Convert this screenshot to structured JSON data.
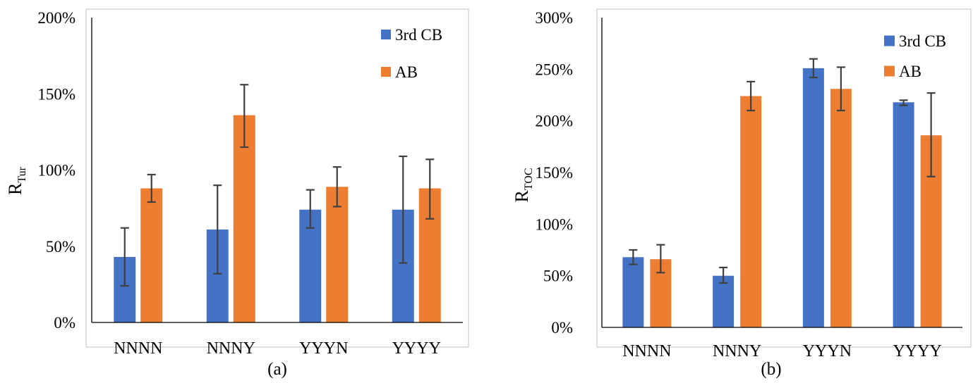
{
  "colors": {
    "cb": "#4472C4",
    "ab": "#ED7D31",
    "error_bar": "#404040",
    "axis": "#000000",
    "frame": "#BFBFBF"
  },
  "chart_data": [
    {
      "type": "bar",
      "panel_label": "(a)",
      "ylabel_main": "R",
      "ylabel_sub": "Tur",
      "categories": [
        "NNNN",
        "NNNY",
        "YYYN",
        "YYYY"
      ],
      "ylim": [
        0,
        200
      ],
      "yticks": [
        0,
        50,
        100,
        150,
        200
      ],
      "tick_suffix": "%",
      "legend_position": "top-right",
      "series": [
        {
          "name": "3rd CB",
          "color": "#4472C4",
          "values": [
            43,
            61,
            74,
            74
          ],
          "err_low": [
            24,
            32,
            62,
            39
          ],
          "err_high": [
            62,
            90,
            87,
            109
          ]
        },
        {
          "name": "AB",
          "color": "#ED7D31",
          "values": [
            88,
            136,
            89,
            88
          ],
          "err_low": [
            79,
            115,
            76,
            68
          ],
          "err_high": [
            97,
            156,
            102,
            107
          ]
        }
      ]
    },
    {
      "type": "bar",
      "panel_label": "(b)",
      "ylabel_main": "R",
      "ylabel_sub": "TOC",
      "categories": [
        "NNNN",
        "NNNY",
        "YYYN",
        "YYYY"
      ],
      "ylim": [
        0,
        300
      ],
      "yticks": [
        0,
        50,
        100,
        150,
        200,
        250,
        300
      ],
      "tick_suffix": "%",
      "legend_position": "top-right",
      "series": [
        {
          "name": "3rd CB",
          "color": "#4472C4",
          "values": [
            68,
            50,
            251,
            218
          ],
          "err_low": [
            61,
            43,
            242,
            215
          ],
          "err_high": [
            75,
            58,
            260,
            220
          ]
        },
        {
          "name": "AB",
          "color": "#ED7D31",
          "values": [
            66,
            224,
            231,
            186
          ],
          "err_low": [
            53,
            210,
            210,
            146
          ],
          "err_high": [
            80,
            238,
            252,
            227
          ]
        }
      ]
    }
  ]
}
